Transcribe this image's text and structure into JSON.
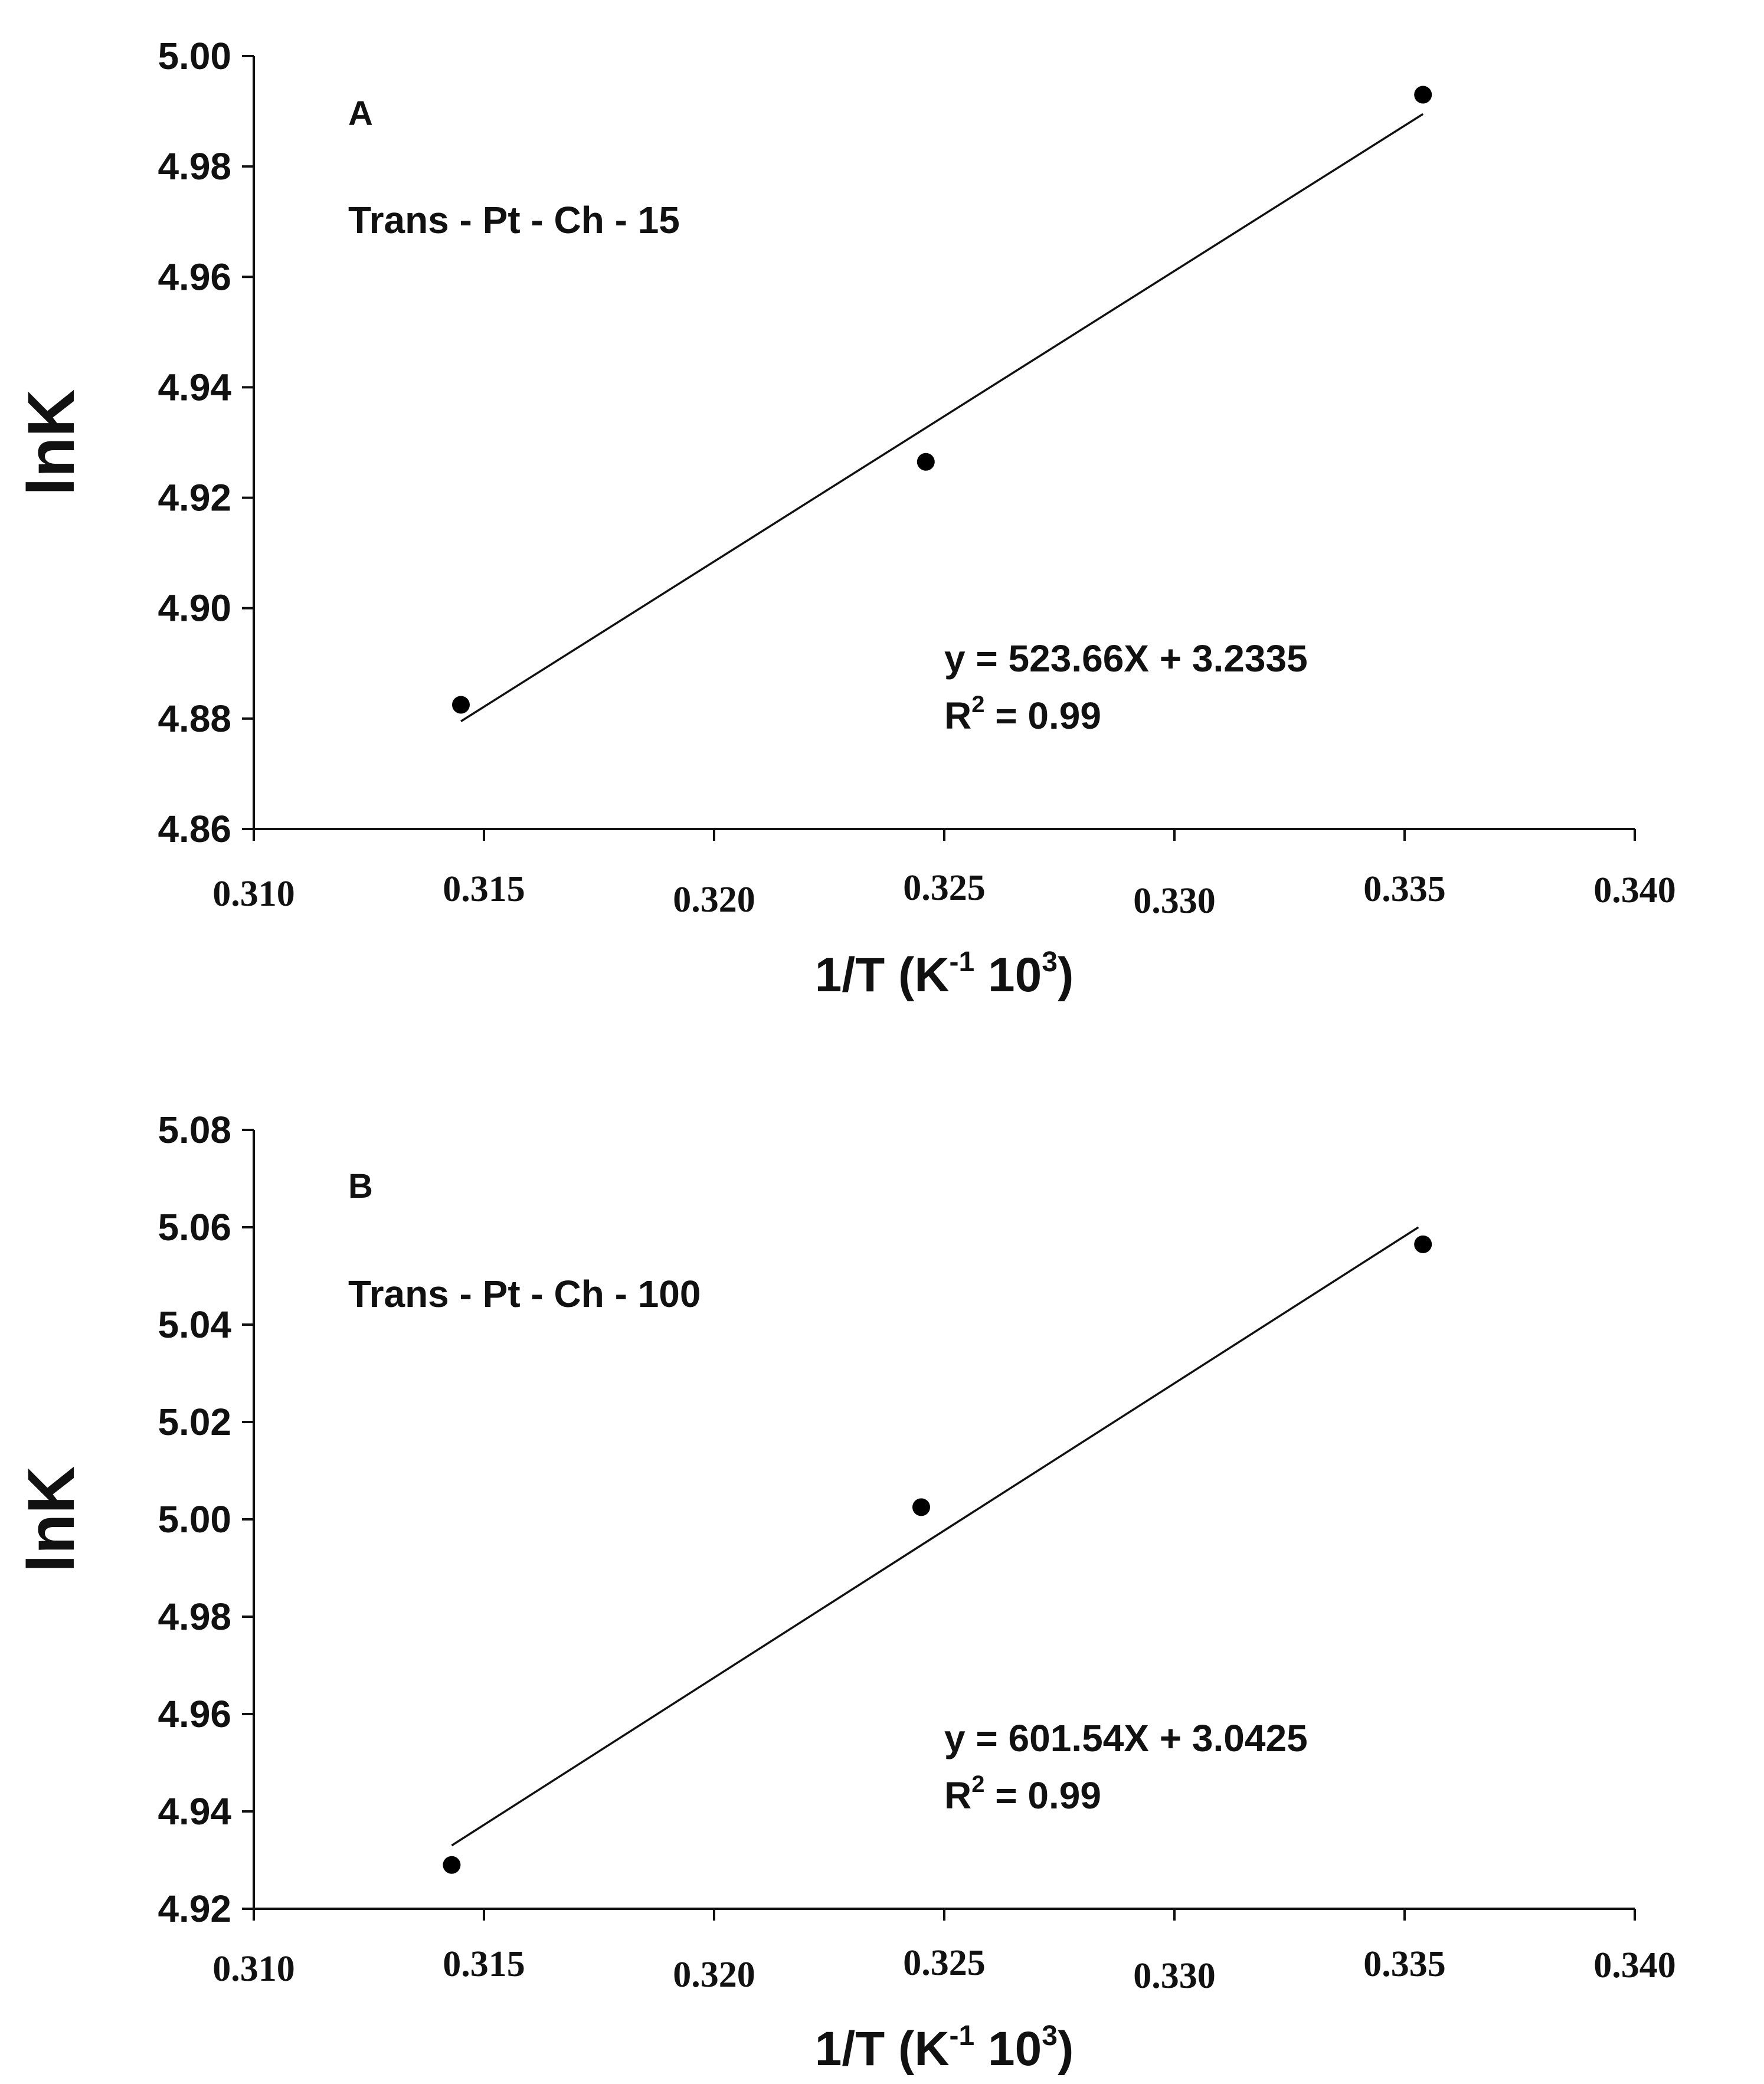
{
  "chart_data": [
    {
      "type": "scatter",
      "panel_letter": "A",
      "sample": "Trans - Pt - Ch - 15",
      "ylabel": "lnK",
      "xlabel": {
        "main": "1/T (K",
        "sup1": "-1",
        "mid": " 10",
        "sup2": "3",
        "end": ")"
      },
      "xlim": [
        0.31,
        0.34
      ],
      "ylim": [
        4.86,
        5.0
      ],
      "xticks": [
        0.31,
        0.315,
        0.32,
        0.325,
        0.33,
        0.335,
        0.34
      ],
      "xtick_labels": [
        "0.310",
        "0.315",
        "0.320",
        "0.325",
        "0.330",
        "0.335",
        "0.340"
      ],
      "yticks": [
        4.86,
        4.88,
        4.9,
        4.92,
        4.94,
        4.96,
        4.98,
        5.0
      ],
      "ytick_labels": [
        "4.86",
        "4.88",
        "4.90",
        "4.92",
        "4.94",
        "4.96",
        "4.98",
        "5.00"
      ],
      "points": [
        {
          "x": 0.3145,
          "y": 4.8825
        },
        {
          "x": 0.3246,
          "y": 4.9265
        },
        {
          "x": 0.3354,
          "y": 4.993
        }
      ],
      "fit": {
        "x": [
          0.3145,
          0.3354
        ],
        "y": [
          4.8795,
          4.9895
        ]
      },
      "equation": "y = 523.66X + 3.2335",
      "r2_prefix": "R",
      "r2_sup": "2",
      "r2_value": " = 0.99"
    },
    {
      "type": "scatter",
      "panel_letter": "B",
      "sample": "Trans - Pt - Ch - 100",
      "ylabel": "lnK",
      "xlabel": {
        "main": "1/T (K",
        "sup1": "-1",
        "mid": " 10",
        "sup2": "3",
        "end": ")"
      },
      "xlim": [
        0.31,
        0.34
      ],
      "ylim": [
        4.92,
        5.08
      ],
      "xticks": [
        0.31,
        0.315,
        0.32,
        0.325,
        0.33,
        0.335,
        0.34
      ],
      "xtick_labels": [
        "0.310",
        "0.315",
        "0.320",
        "0.325",
        "0.330",
        "0.335",
        "0.340"
      ],
      "yticks": [
        4.92,
        4.94,
        4.96,
        4.98,
        5.0,
        5.02,
        5.04,
        5.06,
        5.08
      ],
      "ytick_labels": [
        "4.92",
        "4.94",
        "4.96",
        "4.98",
        "5.00",
        "5.02",
        "5.04",
        "5.06",
        "5.08"
      ],
      "points": [
        {
          "x": 0.3143,
          "y": 4.929
        },
        {
          "x": 0.3245,
          "y": 5.0025
        },
        {
          "x": 0.3354,
          "y": 5.0565
        }
      ],
      "fit": {
        "x": [
          0.3143,
          0.3353
        ],
        "y": [
          4.933,
          5.06
        ]
      },
      "equation": "y = 601.54X + 3.0425",
      "r2_prefix": "R",
      "r2_sup": "2",
      "r2_value": " = 0.99"
    }
  ]
}
